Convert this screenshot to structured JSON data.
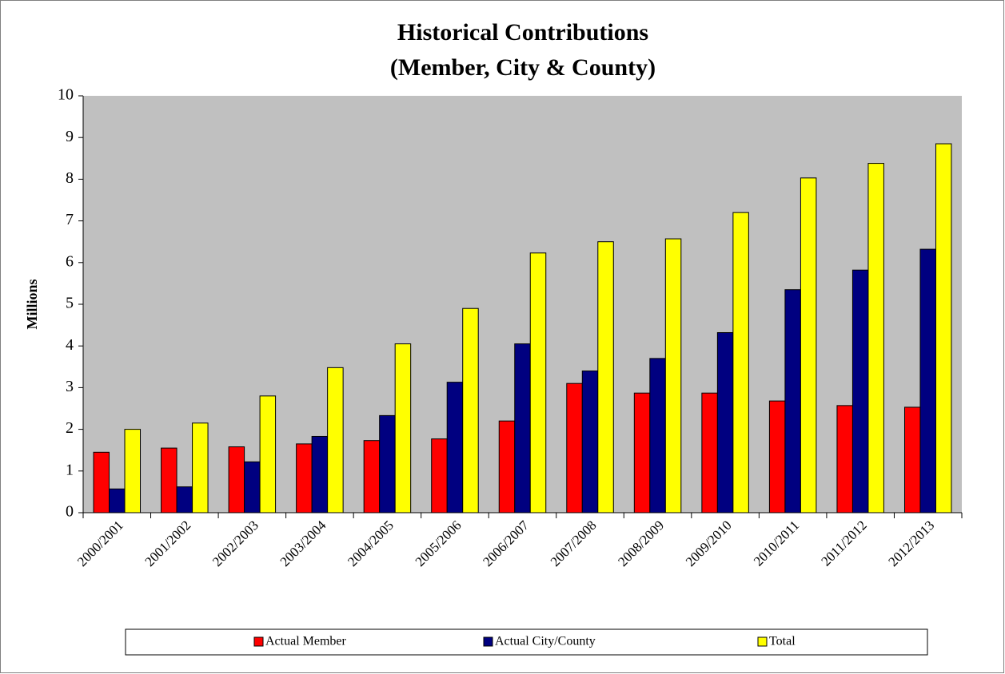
{
  "chart_data": {
    "type": "bar",
    "title": "Historical Contributions",
    "subtitle": "(Member, City & County)",
    "y_label": "Millions",
    "categories": [
      "2000/2001",
      "2001/2002",
      "2002/2003",
      "2003/2004",
      "2004/2005",
      "2005/2006",
      "2006/2007",
      "2007/2008",
      "2008/2009",
      "2009/2010",
      "2010/2011",
      "2011/2012",
      "2012/2013"
    ],
    "series": [
      {
        "name": "Actual Member",
        "color": "#ff0000",
        "values": [
          1.45,
          1.55,
          1.58,
          1.65,
          1.73,
          1.77,
          2.2,
          3.1,
          2.87,
          2.87,
          2.68,
          2.57,
          2.53
        ]
      },
      {
        "name": "Actual City/County",
        "color": "#000080",
        "values": [
          0.57,
          0.62,
          1.22,
          1.83,
          2.33,
          3.13,
          4.05,
          3.4,
          3.7,
          4.32,
          5.35,
          5.82,
          6.32
        ]
      },
      {
        "name": "Total",
        "color": "#ffff00",
        "values": [
          2.0,
          2.15,
          2.8,
          3.48,
          4.05,
          4.9,
          6.23,
          6.5,
          6.57,
          7.2,
          8.03,
          8.38,
          8.85
        ]
      }
    ],
    "ylim": [
      0,
      10
    ],
    "yticks": [
      0,
      1,
      2,
      3,
      4,
      5,
      6,
      7,
      8,
      9,
      10
    ],
    "plot_background": "#c0c0c0",
    "legend": "bottom"
  }
}
